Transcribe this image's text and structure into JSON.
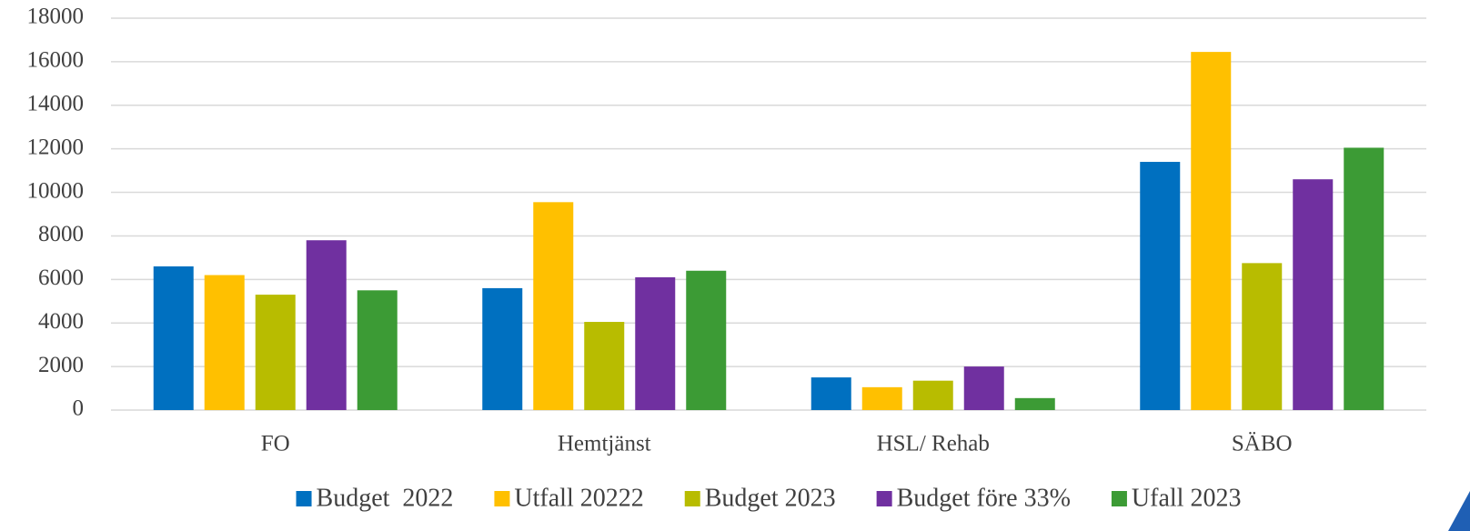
{
  "chart_data": {
    "type": "bar",
    "categories": [
      "FO",
      "Hemtjänst",
      "HSL/ Rehab",
      "SÄBO"
    ],
    "series": [
      {
        "name": "Budget  2022",
        "color": "#0070c0",
        "values": [
          6600,
          5600,
          1500,
          11400
        ]
      },
      {
        "name": "Utfall 20222",
        "color": "#ffc000",
        "values": [
          6200,
          9550,
          1050,
          16450
        ]
      },
      {
        "name": "Budget 2023",
        "color": "#b8bc00",
        "values": [
          5300,
          4050,
          1350,
          6750
        ]
      },
      {
        "name": "Budget före 33%",
        "color": "#7030a0",
        "values": [
          7800,
          6100,
          2000,
          10600
        ]
      },
      {
        "name": "Ufall 2023",
        "color": "#3c9b35",
        "values": [
          5500,
          6400,
          550,
          12050
        ]
      }
    ],
    "ylim": [
      0,
      18000
    ],
    "yticks": [
      0,
      2000,
      4000,
      6000,
      8000,
      10000,
      12000,
      14000,
      16000,
      18000
    ],
    "grid": true,
    "legend": "bottom"
  }
}
